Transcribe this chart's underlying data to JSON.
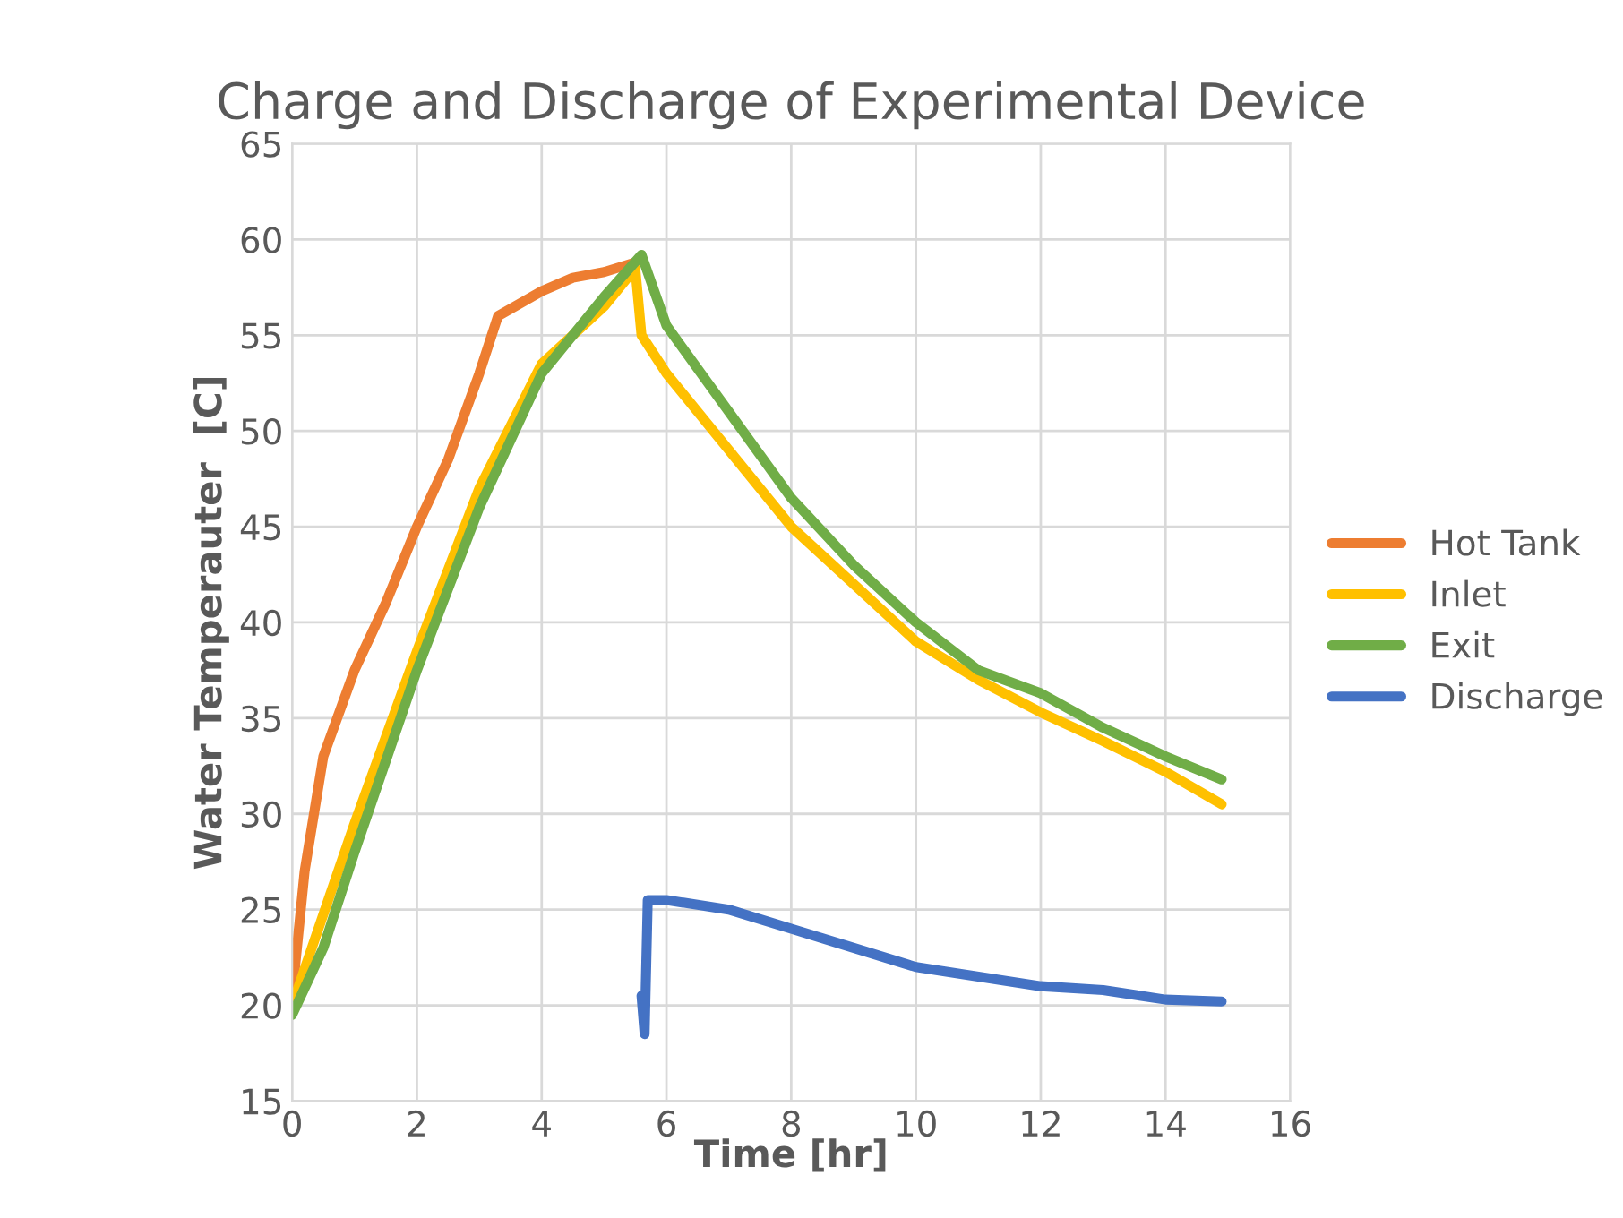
{
  "chart_data": {
    "type": "line",
    "title": "Charge and Discharge of Experimental Device",
    "xlabel": "Time [hr]",
    "ylabel": "Water Temperauter  [C]",
    "xlim": [
      0,
      16
    ],
    "xticks": [
      0,
      2,
      4,
      6,
      8,
      10,
      12,
      14,
      16
    ],
    "ylim": [
      15,
      65
    ],
    "yticks": [
      15,
      20,
      25,
      30,
      35,
      40,
      45,
      50,
      55,
      60,
      65
    ],
    "grid": true,
    "legend": "right",
    "marker": "none",
    "line_style": "solid",
    "series": [
      {
        "name": "Hot Tank",
        "color": "#ed7d31",
        "x": [
          0,
          0.2,
          0.5,
          1,
          1.5,
          2,
          2.5,
          3,
          3.3,
          4,
          4.5,
          5,
          5.5
        ],
        "values": [
          20.5,
          27,
          33,
          37.5,
          41,
          45,
          48.5,
          53,
          56,
          57.3,
          58,
          58.3,
          58.8
        ]
      },
      {
        "name": "Inlet",
        "color": "#ffc000",
        "x": [
          0,
          1,
          2,
          3,
          4,
          5,
          5.5,
          5.6,
          6,
          7,
          8,
          9,
          10,
          11,
          12,
          13,
          14,
          14.9
        ],
        "values": [
          20,
          29.5,
          38.5,
          47,
          53.5,
          56.5,
          58.5,
          55,
          53,
          49,
          45,
          42,
          39,
          37,
          35.3,
          33.8,
          32.2,
          30.5
        ]
      },
      {
        "name": "Exit",
        "color": "#70ad47",
        "x": [
          0,
          0.5,
          1,
          2,
          3,
          4,
          5,
          5.6,
          6,
          7,
          8,
          9,
          10,
          11,
          12,
          13,
          14,
          14.9
        ],
        "values": [
          19.5,
          23,
          28,
          37.5,
          46,
          53,
          57,
          59.2,
          55.5,
          51,
          46.5,
          43,
          40,
          37.5,
          36.3,
          34.5,
          33,
          31.8
        ]
      },
      {
        "name": "Discharge",
        "color": "#4472c4",
        "x": [
          5.6,
          5.65,
          5.7,
          6,
          7,
          8,
          9,
          10,
          11,
          12,
          13,
          14,
          14.9
        ],
        "values": [
          20.5,
          18.5,
          25.5,
          25.5,
          25,
          24,
          23,
          22,
          21.5,
          21,
          20.8,
          20.3,
          20.2
        ]
      }
    ]
  }
}
